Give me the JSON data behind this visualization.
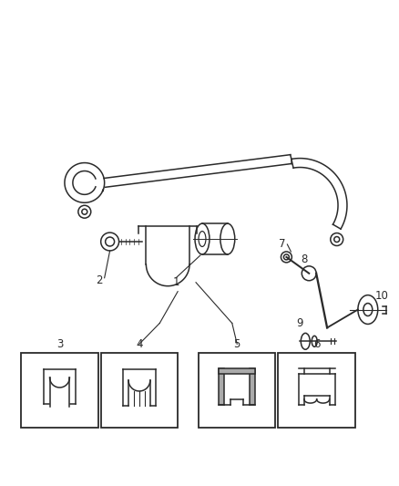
{
  "bg_color": "#ffffff",
  "line_color": "#2a2a2a",
  "label_color": "#2a2a2a",
  "figsize": [
    4.38,
    5.33
  ],
  "dpi": 100
}
